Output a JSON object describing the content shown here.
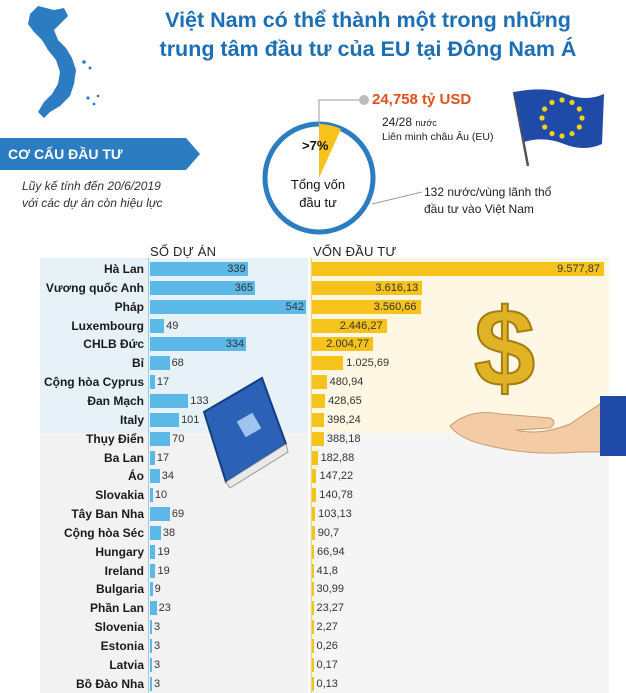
{
  "title": {
    "line1": "Việt Nam có thể thành một trong những",
    "line2": "trung tâm đầu tư của EU tại Đông Nam Á"
  },
  "banner": "CƠ CẤU ĐẦU TƯ",
  "note": {
    "line1": "Lũy kế tính đến 20/6/2019",
    "line2": "với các dự án còn hiệu lực"
  },
  "stats": {
    "amount": "24,758 tỷ USD",
    "share_main": "24/28",
    "share_unit": "nước",
    "eu_label": "Liên minh châu Âu (EU)",
    "countries_line1": "132 nước/vùng lãnh thổ",
    "countries_line2": "đầu tư vào Việt Nam",
    "circle_pct": ">7%",
    "circle_label_line1": "Tổng vốn",
    "circle_label_line2": "đầu tư"
  },
  "colors": {
    "title": "#1c6fb5",
    "banner": "#2b7cc0",
    "projects_bar": "#5cb8e6",
    "capital_bar": "#f6c21c",
    "amount": "#e0501c",
    "eu_flag": "#1f4aa8"
  },
  "chart_data": {
    "type": "bar",
    "categories": [
      "Hà Lan",
      "Vương quốc Anh",
      "Pháp",
      "Luxembourg",
      "CHLB Đức",
      "Bỉ",
      "Cộng hòa Cyprus",
      "Đan Mạch",
      "Italy",
      "Thụy Điển",
      "Ba Lan",
      "Áo",
      "Slovakia",
      "Tây Ban Nha",
      "Cộng hòa Séc",
      "Hungary",
      "Ireland",
      "Bulgaria",
      "Phần Lan",
      "Slovenia",
      "Estonia",
      "Latvia",
      "Bồ Đào Nha"
    ],
    "series": [
      {
        "name": "SỐ DỰ ÁN",
        "values": [
          339,
          365,
          542,
          49,
          334,
          68,
          17,
          133,
          101,
          70,
          17,
          34,
          10,
          69,
          38,
          19,
          19,
          9,
          23,
          3,
          3,
          3,
          3
        ],
        "labels": [
          "339",
          "365",
          "542",
          "49",
          "334",
          "68",
          "17",
          "133",
          "101",
          "70",
          "17",
          "34",
          "10",
          "69",
          "38",
          "19",
          "19",
          "9",
          "23",
          "3",
          "3",
          "3",
          "3"
        ]
      },
      {
        "name": "VỐN ĐẦU TƯ",
        "values": [
          9577.87,
          3616.13,
          3560.66,
          2446.27,
          2004.77,
          1025.69,
          480.94,
          428.65,
          398.24,
          388.18,
          182.88,
          147.22,
          140.78,
          103.13,
          90.7,
          66.94,
          41.8,
          30.99,
          23.27,
          2.27,
          0.26,
          0.17,
          0.13
        ],
        "labels": [
          "9.577,87",
          "3.616,13",
          "3.560,66",
          "2.446,27",
          "2.004,77",
          "1.025,69",
          "480,94",
          "428,65",
          "398,24",
          "388,18",
          "182,88",
          "147,22",
          "140,78",
          "103,13",
          "90,7",
          "66,94",
          "41,8",
          "30,99",
          "23,27",
          "2,27",
          "0,26",
          "0,17",
          "0,13"
        ]
      }
    ]
  }
}
